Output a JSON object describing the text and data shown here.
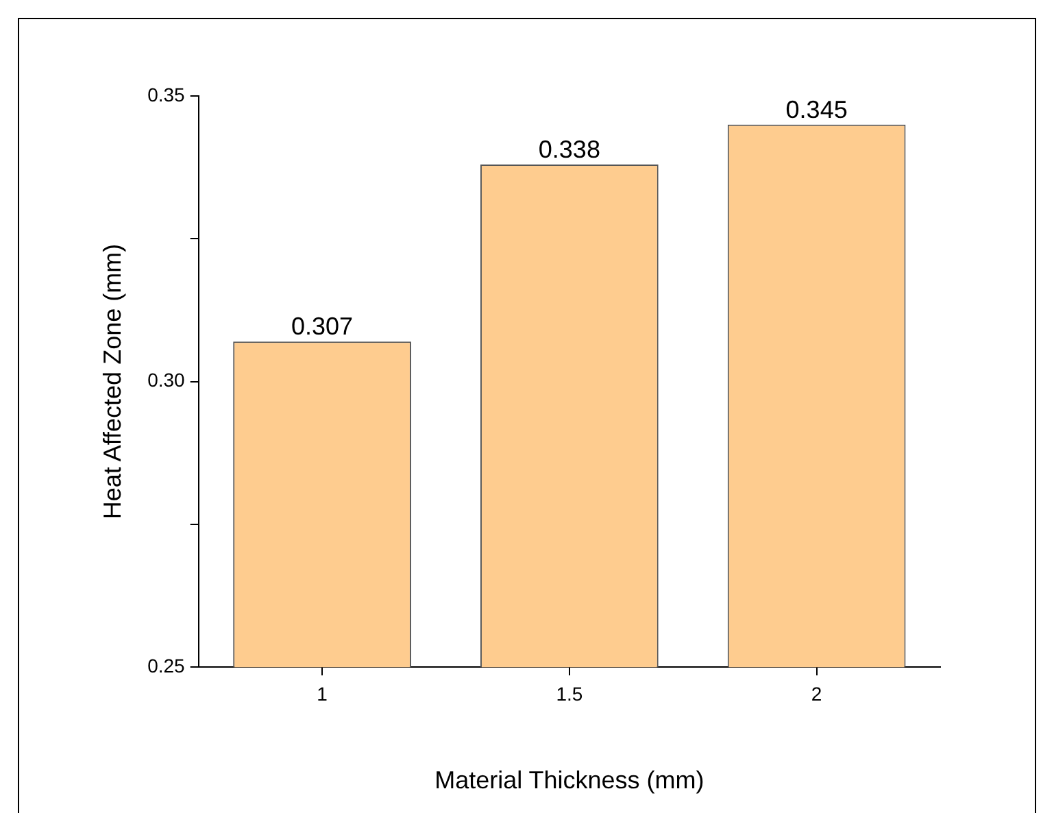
{
  "chart_data": {
    "type": "bar",
    "xlabel": "Material Thickness (mm)",
    "ylabel": "Heat Affected Zone (mm)",
    "categories": [
      "1",
      "1.5",
      "2"
    ],
    "values": [
      0.307,
      0.338,
      0.345
    ],
    "color": "#fecc8f",
    "ylim": [
      0.25,
      0.35
    ],
    "yticks": [
      0.25,
      {
        "value": 0.275,
        "label": null
      },
      {
        "value": 0.3,
        "label": "0.30"
      },
      {
        "value": 0.325,
        "label": null
      },
      0.35
    ],
    "data_labels": true,
    "grid": false,
    "legend": false
  }
}
